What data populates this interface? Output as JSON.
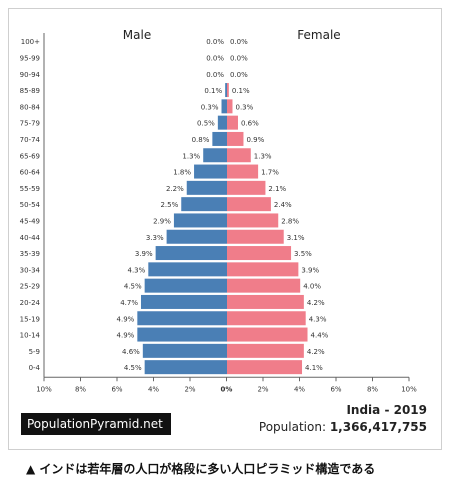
{
  "colors": {
    "male": "#4a7fb5",
    "female": "#f07d8a"
  },
  "branding": {
    "site": "PopulationPyramid.net"
  },
  "info": {
    "country_year": "India - 2019",
    "population_label": "Population:",
    "population_value": "1,366,417,755"
  },
  "caption": "▲ インドは若年層の人口が格段に多い人口ピラミッド構造である",
  "chart_data": {
    "type": "bar",
    "orientation": "horizontal-pyramid",
    "left_label": "Male",
    "right_label": "Female",
    "categories": [
      "100+",
      "95-99",
      "90-94",
      "85-89",
      "80-84",
      "75-79",
      "70-74",
      "65-69",
      "60-64",
      "55-59",
      "50-54",
      "45-49",
      "40-44",
      "35-39",
      "30-34",
      "25-29",
      "20-24",
      "15-19",
      "10-14",
      "5-9",
      "0-4"
    ],
    "series": [
      {
        "name": "Male",
        "values": [
          0.0,
          0.0,
          0.0,
          0.1,
          0.3,
          0.5,
          0.8,
          1.3,
          1.8,
          2.2,
          2.5,
          2.9,
          3.3,
          3.9,
          4.3,
          4.5,
          4.7,
          4.9,
          4.9,
          4.6,
          4.5
        ]
      },
      {
        "name": "Female",
        "values": [
          0.0,
          0.0,
          0.0,
          0.1,
          0.3,
          0.6,
          0.9,
          1.3,
          1.7,
          2.1,
          2.4,
          2.8,
          3.1,
          3.5,
          3.9,
          4.0,
          4.2,
          4.3,
          4.4,
          4.2,
          4.1
        ]
      }
    ],
    "xlim": [
      -10,
      10
    ],
    "xticks": [
      "10%",
      "8%",
      "6%",
      "4%",
      "2%",
      "0%",
      "2%",
      "4%",
      "6%",
      "8%",
      "10%"
    ],
    "value_suffix": "%"
  }
}
